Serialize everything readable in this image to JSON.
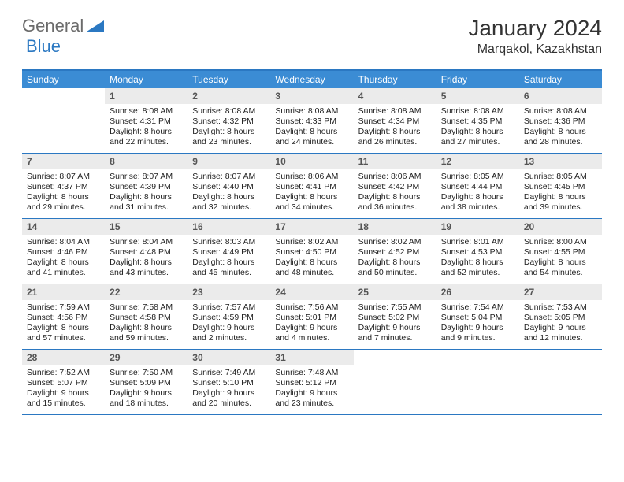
{
  "logo": {
    "word1": "General",
    "word2": "Blue"
  },
  "title": "January 2024",
  "location": "Marqakol, Kazakhstan",
  "header_bg": "#3b8cd4",
  "border_color": "#2b78c2",
  "dayhead_bg": "#ebebeb",
  "dow": [
    "Sunday",
    "Monday",
    "Tuesday",
    "Wednesday",
    "Thursday",
    "Friday",
    "Saturday"
  ],
  "weeks": [
    [
      {
        "n": "",
        "sr": "",
        "ss": "",
        "dl": ""
      },
      {
        "n": "1",
        "sr": "Sunrise: 8:08 AM",
        "ss": "Sunset: 4:31 PM",
        "dl": "Daylight: 8 hours and 22 minutes."
      },
      {
        "n": "2",
        "sr": "Sunrise: 8:08 AM",
        "ss": "Sunset: 4:32 PM",
        "dl": "Daylight: 8 hours and 23 minutes."
      },
      {
        "n": "3",
        "sr": "Sunrise: 8:08 AM",
        "ss": "Sunset: 4:33 PM",
        "dl": "Daylight: 8 hours and 24 minutes."
      },
      {
        "n": "4",
        "sr": "Sunrise: 8:08 AM",
        "ss": "Sunset: 4:34 PM",
        "dl": "Daylight: 8 hours and 26 minutes."
      },
      {
        "n": "5",
        "sr": "Sunrise: 8:08 AM",
        "ss": "Sunset: 4:35 PM",
        "dl": "Daylight: 8 hours and 27 minutes."
      },
      {
        "n": "6",
        "sr": "Sunrise: 8:08 AM",
        "ss": "Sunset: 4:36 PM",
        "dl": "Daylight: 8 hours and 28 minutes."
      }
    ],
    [
      {
        "n": "7",
        "sr": "Sunrise: 8:07 AM",
        "ss": "Sunset: 4:37 PM",
        "dl": "Daylight: 8 hours and 29 minutes."
      },
      {
        "n": "8",
        "sr": "Sunrise: 8:07 AM",
        "ss": "Sunset: 4:39 PM",
        "dl": "Daylight: 8 hours and 31 minutes."
      },
      {
        "n": "9",
        "sr": "Sunrise: 8:07 AM",
        "ss": "Sunset: 4:40 PM",
        "dl": "Daylight: 8 hours and 32 minutes."
      },
      {
        "n": "10",
        "sr": "Sunrise: 8:06 AM",
        "ss": "Sunset: 4:41 PM",
        "dl": "Daylight: 8 hours and 34 minutes."
      },
      {
        "n": "11",
        "sr": "Sunrise: 8:06 AM",
        "ss": "Sunset: 4:42 PM",
        "dl": "Daylight: 8 hours and 36 minutes."
      },
      {
        "n": "12",
        "sr": "Sunrise: 8:05 AM",
        "ss": "Sunset: 4:44 PM",
        "dl": "Daylight: 8 hours and 38 minutes."
      },
      {
        "n": "13",
        "sr": "Sunrise: 8:05 AM",
        "ss": "Sunset: 4:45 PM",
        "dl": "Daylight: 8 hours and 39 minutes."
      }
    ],
    [
      {
        "n": "14",
        "sr": "Sunrise: 8:04 AM",
        "ss": "Sunset: 4:46 PM",
        "dl": "Daylight: 8 hours and 41 minutes."
      },
      {
        "n": "15",
        "sr": "Sunrise: 8:04 AM",
        "ss": "Sunset: 4:48 PM",
        "dl": "Daylight: 8 hours and 43 minutes."
      },
      {
        "n": "16",
        "sr": "Sunrise: 8:03 AM",
        "ss": "Sunset: 4:49 PM",
        "dl": "Daylight: 8 hours and 45 minutes."
      },
      {
        "n": "17",
        "sr": "Sunrise: 8:02 AM",
        "ss": "Sunset: 4:50 PM",
        "dl": "Daylight: 8 hours and 48 minutes."
      },
      {
        "n": "18",
        "sr": "Sunrise: 8:02 AM",
        "ss": "Sunset: 4:52 PM",
        "dl": "Daylight: 8 hours and 50 minutes."
      },
      {
        "n": "19",
        "sr": "Sunrise: 8:01 AM",
        "ss": "Sunset: 4:53 PM",
        "dl": "Daylight: 8 hours and 52 minutes."
      },
      {
        "n": "20",
        "sr": "Sunrise: 8:00 AM",
        "ss": "Sunset: 4:55 PM",
        "dl": "Daylight: 8 hours and 54 minutes."
      }
    ],
    [
      {
        "n": "21",
        "sr": "Sunrise: 7:59 AM",
        "ss": "Sunset: 4:56 PM",
        "dl": "Daylight: 8 hours and 57 minutes."
      },
      {
        "n": "22",
        "sr": "Sunrise: 7:58 AM",
        "ss": "Sunset: 4:58 PM",
        "dl": "Daylight: 8 hours and 59 minutes."
      },
      {
        "n": "23",
        "sr": "Sunrise: 7:57 AM",
        "ss": "Sunset: 4:59 PM",
        "dl": "Daylight: 9 hours and 2 minutes."
      },
      {
        "n": "24",
        "sr": "Sunrise: 7:56 AM",
        "ss": "Sunset: 5:01 PM",
        "dl": "Daylight: 9 hours and 4 minutes."
      },
      {
        "n": "25",
        "sr": "Sunrise: 7:55 AM",
        "ss": "Sunset: 5:02 PM",
        "dl": "Daylight: 9 hours and 7 minutes."
      },
      {
        "n": "26",
        "sr": "Sunrise: 7:54 AM",
        "ss": "Sunset: 5:04 PM",
        "dl": "Daylight: 9 hours and 9 minutes."
      },
      {
        "n": "27",
        "sr": "Sunrise: 7:53 AM",
        "ss": "Sunset: 5:05 PM",
        "dl": "Daylight: 9 hours and 12 minutes."
      }
    ],
    [
      {
        "n": "28",
        "sr": "Sunrise: 7:52 AM",
        "ss": "Sunset: 5:07 PM",
        "dl": "Daylight: 9 hours and 15 minutes."
      },
      {
        "n": "29",
        "sr": "Sunrise: 7:50 AM",
        "ss": "Sunset: 5:09 PM",
        "dl": "Daylight: 9 hours and 18 minutes."
      },
      {
        "n": "30",
        "sr": "Sunrise: 7:49 AM",
        "ss": "Sunset: 5:10 PM",
        "dl": "Daylight: 9 hours and 20 minutes."
      },
      {
        "n": "31",
        "sr": "Sunrise: 7:48 AM",
        "ss": "Sunset: 5:12 PM",
        "dl": "Daylight: 9 hours and 23 minutes."
      },
      {
        "n": "",
        "sr": "",
        "ss": "",
        "dl": ""
      },
      {
        "n": "",
        "sr": "",
        "ss": "",
        "dl": ""
      },
      {
        "n": "",
        "sr": "",
        "ss": "",
        "dl": ""
      }
    ]
  ]
}
